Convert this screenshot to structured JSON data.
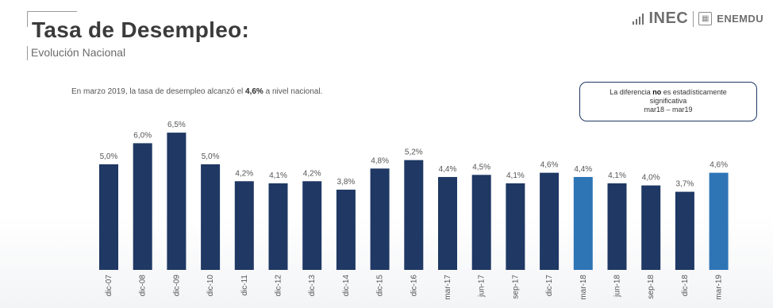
{
  "header": {
    "title": "Tasa de Desempleo:",
    "subtitle": "Evolución Nacional"
  },
  "logo": {
    "name": "INEC",
    "survey": "ENEMDU"
  },
  "intro": {
    "before": "En marzo 2019, la tasa de desempleo alcanzó el ",
    "highlight": "4,6%",
    "after": " a nivel nacional."
  },
  "note": {
    "line1_before": "La diferencia ",
    "line1_bold": "no",
    "line1_after": " es estadísticamente",
    "line2": "significativa",
    "line3": "mar18 – mar19"
  },
  "colors": {
    "bar_dark": "#1f3864",
    "bar_light": "#2e75b6",
    "label_text": "#555555"
  },
  "chart_data": {
    "type": "bar",
    "categories": [
      "dic-07",
      "dic-08",
      "dic-09",
      "dic-10",
      "dic-11",
      "dic-12",
      "dic-13",
      "dic-14",
      "dic-15",
      "dic-16",
      "mar-17",
      "jun-17",
      "sep-17",
      "dic-17",
      "mar-18",
      "jun-18",
      "sep-18",
      "dic-18",
      "mar-19"
    ],
    "values": [
      5.0,
      6.0,
      6.5,
      5.0,
      4.2,
      4.1,
      4.2,
      3.8,
      4.8,
      5.2,
      4.4,
      4.5,
      4.1,
      4.6,
      4.4,
      4.1,
      4.0,
      3.7,
      4.6
    ],
    "value_labels": [
      "5,0%",
      "6,0%",
      "6,5%",
      "5,0%",
      "4,2%",
      "4,1%",
      "4,2%",
      "3,8%",
      "4,8%",
      "5,2%",
      "4,4%",
      "4,5%",
      "4,1%",
      "4,6%",
      "4,4%",
      "4,1%",
      "4,0%",
      "3,7%",
      "4,6%"
    ],
    "highlighted": [
      "mar-18",
      "mar-19"
    ],
    "ylim": [
      0,
      7
    ],
    "unit": "%",
    "grid": false,
    "legend": "none"
  }
}
